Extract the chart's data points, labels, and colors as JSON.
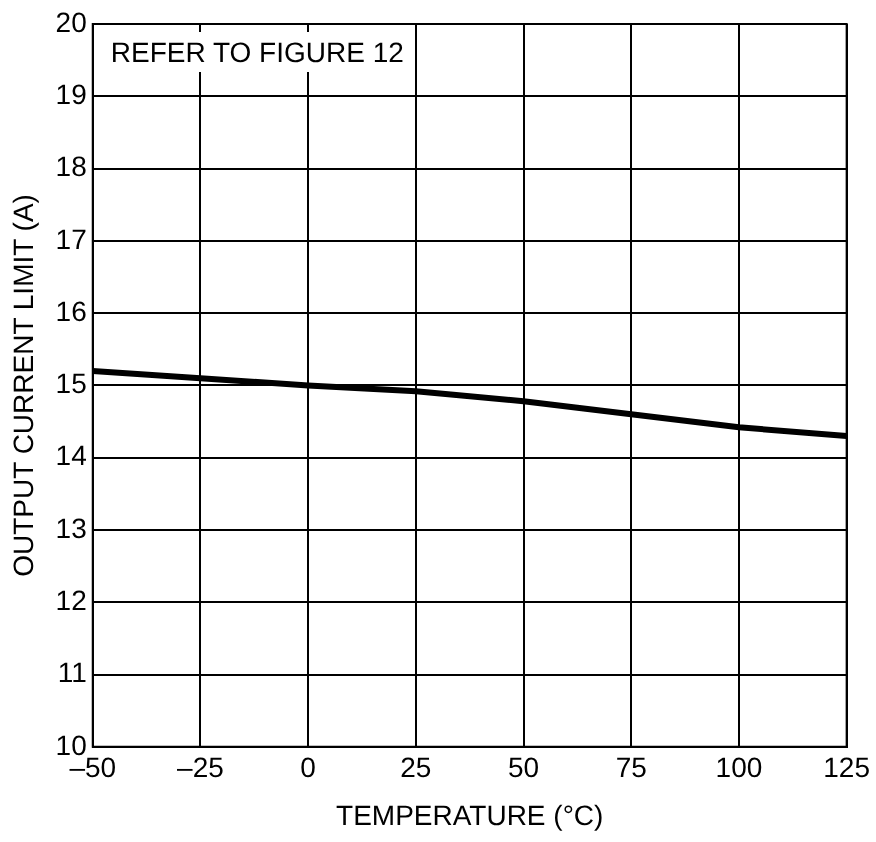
{
  "chart_data": {
    "type": "line",
    "xlabel": "TEMPERATURE (°C)",
    "ylabel": "OUTPUT CURRENT LIMIT (A)",
    "annotations": [
      "REFER TO FIGURE 12"
    ],
    "x": [
      -50,
      -25,
      0,
      25,
      50,
      75,
      100,
      125
    ],
    "series": [
      {
        "color": "#000000",
        "values": [
          15.2,
          15.1,
          15.0,
          14.92,
          14.78,
          14.6,
          14.42,
          14.3
        ]
      }
    ],
    "xlim": [
      -50,
      125
    ],
    "xticks": [
      {
        "value": -50,
        "label": "–50"
      },
      {
        "value": -25,
        "label": "–25"
      },
      0,
      25,
      50,
      75,
      100,
      125
    ],
    "ylim": [
      10,
      20
    ],
    "yticks": [
      10,
      11,
      12,
      13,
      14,
      15,
      16,
      17,
      18,
      19,
      20
    ],
    "grid": true,
    "legend": false,
    "marker": "none",
    "line_style": "solid"
  }
}
